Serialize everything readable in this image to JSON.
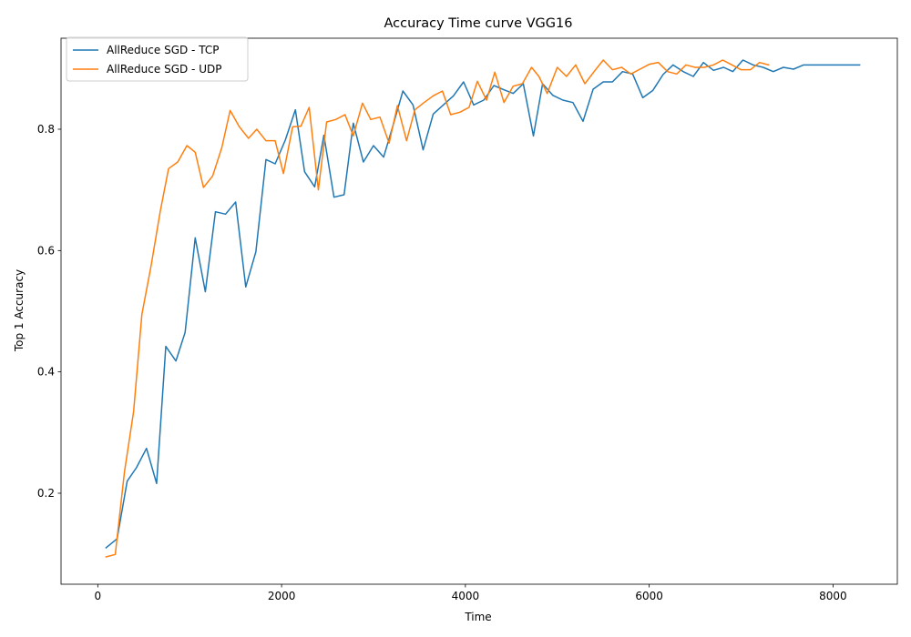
{
  "chart_data": {
    "type": "line",
    "title": "Accuracy Time curve VGG16",
    "xlabel": "Time",
    "ylabel": "Top 1 Accuracy",
    "xlim": [
      -400,
      8700
    ],
    "ylim": [
      0.05,
      0.95
    ],
    "xticks": [
      0,
      2000,
      4000,
      6000,
      8000
    ],
    "yticks": [
      0.2,
      0.4,
      0.6,
      0.8
    ],
    "grid": false,
    "legend_position": "top-left",
    "series": [
      {
        "name": "AllReduce SGD - TCP",
        "color": "#1f77b4",
        "points": [
          [
            90,
            0.11
          ],
          [
            210,
            0.125
          ],
          [
            320,
            0.22
          ],
          [
            420,
            0.242
          ],
          [
            530,
            0.274
          ],
          [
            640,
            0.216
          ],
          [
            740,
            0.442
          ],
          [
            850,
            0.418
          ],
          [
            950,
            0.465
          ],
          [
            1060,
            0.621
          ],
          [
            1170,
            0.532
          ],
          [
            1280,
            0.664
          ],
          [
            1390,
            0.66
          ],
          [
            1500,
            0.68
          ],
          [
            1610,
            0.54
          ],
          [
            1720,
            0.598
          ],
          [
            1830,
            0.75
          ],
          [
            1930,
            0.743
          ],
          [
            2040,
            0.782
          ],
          [
            2150,
            0.832
          ],
          [
            2250,
            0.73
          ],
          [
            2360,
            0.705
          ],
          [
            2460,
            0.79
          ],
          [
            2570,
            0.688
          ],
          [
            2680,
            0.692
          ],
          [
            2780,
            0.81
          ],
          [
            2890,
            0.746
          ],
          [
            3000,
            0.773
          ],
          [
            3110,
            0.754
          ],
          [
            3210,
            0.805
          ],
          [
            3320,
            0.863
          ],
          [
            3430,
            0.84
          ],
          [
            3540,
            0.766
          ],
          [
            3650,
            0.825
          ],
          [
            3760,
            0.84
          ],
          [
            3870,
            0.855
          ],
          [
            3980,
            0.878
          ],
          [
            4090,
            0.84
          ],
          [
            4200,
            0.848
          ],
          [
            4310,
            0.872
          ],
          [
            4420,
            0.865
          ],
          [
            4520,
            0.859
          ],
          [
            4630,
            0.875
          ],
          [
            4740,
            0.789
          ],
          [
            4840,
            0.875
          ],
          [
            4950,
            0.856
          ],
          [
            5060,
            0.848
          ],
          [
            5170,
            0.844
          ],
          [
            5280,
            0.813
          ],
          [
            5390,
            0.866
          ],
          [
            5500,
            0.878
          ],
          [
            5600,
            0.878
          ],
          [
            5710,
            0.895
          ],
          [
            5820,
            0.891
          ],
          [
            5930,
            0.852
          ],
          [
            6040,
            0.864
          ],
          [
            6150,
            0.89
          ],
          [
            6260,
            0.906
          ],
          [
            6370,
            0.895
          ],
          [
            6480,
            0.887
          ],
          [
            6590,
            0.91
          ],
          [
            6700,
            0.897
          ],
          [
            6810,
            0.902
          ],
          [
            6910,
            0.895
          ],
          [
            7020,
            0.914
          ],
          [
            7130,
            0.906
          ],
          [
            7240,
            0.902
          ],
          [
            7350,
            0.895
          ],
          [
            7460,
            0.902
          ],
          [
            7570,
            0.899
          ],
          [
            7680,
            0.906
          ],
          [
            7790,
            0.906
          ],
          [
            7900,
            0.906
          ],
          [
            8000,
            0.906
          ],
          [
            8120,
            0.906
          ],
          [
            8290,
            0.906
          ]
        ]
      },
      {
        "name": "AllReduce SGD - UDP",
        "color": "#ff7f0e",
        "points": [
          [
            90,
            0.095
          ],
          [
            190,
            0.099
          ],
          [
            290,
            0.235
          ],
          [
            390,
            0.335
          ],
          [
            480,
            0.495
          ],
          [
            580,
            0.575
          ],
          [
            680,
            0.665
          ],
          [
            770,
            0.735
          ],
          [
            870,
            0.746
          ],
          [
            970,
            0.773
          ],
          [
            1060,
            0.762
          ],
          [
            1150,
            0.704
          ],
          [
            1250,
            0.723
          ],
          [
            1350,
            0.77
          ],
          [
            1440,
            0.831
          ],
          [
            1540,
            0.804
          ],
          [
            1640,
            0.785
          ],
          [
            1730,
            0.8
          ],
          [
            1830,
            0.781
          ],
          [
            1930,
            0.781
          ],
          [
            2020,
            0.727
          ],
          [
            2120,
            0.804
          ],
          [
            2210,
            0.805
          ],
          [
            2300,
            0.836
          ],
          [
            2400,
            0.7
          ],
          [
            2490,
            0.812
          ],
          [
            2590,
            0.816
          ],
          [
            2690,
            0.824
          ],
          [
            2780,
            0.789
          ],
          [
            2880,
            0.843
          ],
          [
            2970,
            0.816
          ],
          [
            3070,
            0.82
          ],
          [
            3170,
            0.777
          ],
          [
            3260,
            0.839
          ],
          [
            3360,
            0.781
          ],
          [
            3450,
            0.832
          ],
          [
            3550,
            0.844
          ],
          [
            3650,
            0.855
          ],
          [
            3750,
            0.863
          ],
          [
            3840,
            0.824
          ],
          [
            3940,
            0.828
          ],
          [
            4040,
            0.836
          ],
          [
            4130,
            0.879
          ],
          [
            4230,
            0.848
          ],
          [
            4320,
            0.894
          ],
          [
            4420,
            0.844
          ],
          [
            4520,
            0.871
          ],
          [
            4620,
            0.875
          ],
          [
            4720,
            0.902
          ],
          [
            4800,
            0.887
          ],
          [
            4890,
            0.859
          ],
          [
            5000,
            0.902
          ],
          [
            5100,
            0.887
          ],
          [
            5200,
            0.906
          ],
          [
            5300,
            0.875
          ],
          [
            5400,
            0.895
          ],
          [
            5500,
            0.914
          ],
          [
            5600,
            0.898
          ],
          [
            5700,
            0.902
          ],
          [
            5800,
            0.891
          ],
          [
            5900,
            0.899
          ],
          [
            6000,
            0.907
          ],
          [
            6100,
            0.91
          ],
          [
            6200,
            0.895
          ],
          [
            6300,
            0.891
          ],
          [
            6400,
            0.906
          ],
          [
            6500,
            0.902
          ],
          [
            6600,
            0.902
          ],
          [
            6700,
            0.906
          ],
          [
            6800,
            0.914
          ],
          [
            6900,
            0.906
          ],
          [
            7000,
            0.898
          ],
          [
            7100,
            0.898
          ],
          [
            7200,
            0.91
          ],
          [
            7300,
            0.906
          ]
        ]
      }
    ]
  }
}
